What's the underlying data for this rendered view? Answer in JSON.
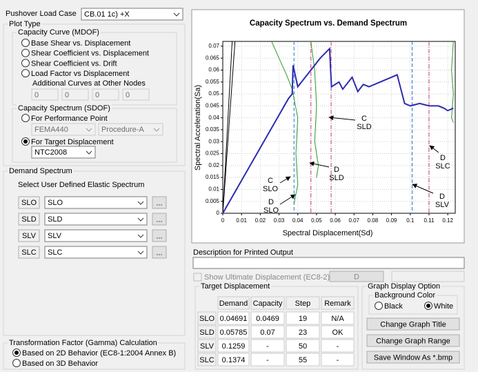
{
  "load_case": {
    "label": "Pushover Load Case",
    "value": "CB.01 1c) +X"
  },
  "plot_type": {
    "title": "Plot Type",
    "capacity_curve": {
      "title": "Capacity Curve (MDOF)",
      "options": [
        "Base Shear vs. Displacement",
        "Shear Coefficient vs. Displacement",
        "Shear Coefficient vs. Drift",
        "Load Factor vs Displacement"
      ],
      "additional_label": "Additional Curves at Other Nodes",
      "nodes": [
        0,
        0,
        0,
        0
      ]
    },
    "capacity_spectrum": {
      "title": "Capacity Spectrum (SDOF)",
      "options": [
        "For Performance Point",
        "For Target Displacement"
      ],
      "selected": 1,
      "method": "FEMA440",
      "procedure": "Procedure-A",
      "code": "NTC2008"
    }
  },
  "demand_spectrum": {
    "title": "Demand Spectrum",
    "subtitle": "Select User Defined Elastic Spectrum",
    "rows": [
      {
        "label": "SLO",
        "value": "SLO",
        "button": "..."
      },
      {
        "label": "SLD",
        "value": "SLD",
        "button": "..."
      },
      {
        "label": "SLV",
        "value": "SLV",
        "button": "..."
      },
      {
        "label": "SLC",
        "value": "SLC",
        "button": "..."
      }
    ]
  },
  "gamma": {
    "title": "Transformation Factor (Gamma) Calculation",
    "options": [
      "Based on 2D Behavior (EC8-1:2004  Annex B)",
      "Based on 3D Behavior"
    ],
    "selected": 0
  },
  "graph": {
    "type": "line",
    "title": "Capacity Spectrum vs. Demand Spectrum",
    "x_label": "Spectral Displacement(Sd)",
    "y_label": "Spectral Acceleration(Sa)",
    "xlim": [
      0,
      0.124
    ],
    "ylim": [
      0,
      0.072
    ],
    "xticks": [
      0,
      0.01,
      0.02,
      0.03,
      0.04,
      0.05,
      0.06,
      0.07,
      0.08,
      0.09,
      0.1,
      0.11,
      0.12
    ],
    "yticks": [
      0,
      0.005,
      0.01,
      0.015,
      0.02,
      0.025,
      0.03,
      0.035,
      0.04,
      0.045,
      0.05,
      0.055,
      0.06,
      0.065,
      0.07
    ],
    "grid": true,
    "series": [
      {
        "color": "#000000",
        "x": [
          0,
          0.005
        ],
        "values": [
          0,
          0.072
        ]
      },
      {
        "color": "#000000",
        "x": [
          0,
          0.0065
        ],
        "values": [
          0,
          0.072
        ]
      },
      {
        "color": "#2e9a2e",
        "x": [
          0.026,
          0.03,
          0.034,
          0.037,
          0.04,
          0.039,
          0.04,
          0.038
        ],
        "values": [
          0.072,
          0.065,
          0.058,
          0.052,
          0.04,
          0.025,
          0.012,
          0.004
        ]
      },
      {
        "color": "#2e9a2e",
        "x": [
          0.047,
          0.049,
          0.05,
          0.049,
          0.051,
          0.05
        ],
        "values": [
          0.072,
          0.06,
          0.045,
          0.03,
          0.02,
          0.015
        ]
      },
      {
        "color": "#2e9a2e",
        "x": [
          0.123,
          0.122,
          0.123,
          0.122,
          0.123
        ],
        "values": [
          0.072,
          0.06,
          0.05,
          0.04,
          0.038
        ]
      },
      {
        "color": "#2b2bb0",
        "x": [
          0,
          0.035,
          0.037,
          0.0375,
          0.04,
          0.046,
          0.052,
          0.057,
          0.0575,
          0.058,
          0.062,
          0.064,
          0.069,
          0.072,
          0.075,
          0.078,
          0.093,
          0.097,
          0.1,
          0.105,
          0.11,
          0.115,
          0.118,
          0.12,
          0.123
        ],
        "values": [
          0,
          0.048,
          0.05,
          0.062,
          0.053,
          0.059,
          0.065,
          0.069,
          0.06,
          0.053,
          0.055,
          0.052,
          0.057,
          0.051,
          0.054,
          0.053,
          0.058,
          0.046,
          0.045,
          0.046,
          0.045,
          0.045,
          0.044,
          0.043,
          0.044
        ]
      }
    ],
    "vlines": [
      {
        "x": 0.038,
        "color": "#2a6fd6",
        "dash": "dashed"
      },
      {
        "x": 0.047,
        "color": "#c0397a",
        "dash": "dashdot"
      },
      {
        "x": 0.0578,
        "color": "#c0397a",
        "dash": "dashdot"
      },
      {
        "x": 0.101,
        "color": "#2a6fd6",
        "dash": "dashed"
      },
      {
        "x": 0.11,
        "color": "#c0397a",
        "dash": "dashdot"
      }
    ],
    "annotations": [
      {
        "lines": [
          "C",
          "SLO"
        ]
      },
      {
        "lines": [
          "D",
          "SLO"
        ]
      },
      {
        "lines": [
          "D",
          "SLD"
        ]
      },
      {
        "lines": [
          "C",
          "SLD"
        ]
      },
      {
        "lines": [
          "D",
          "SLC"
        ]
      },
      {
        "lines": [
          "D",
          "SLV"
        ]
      }
    ]
  },
  "description": {
    "label": "Description for Printed Output"
  },
  "ultimate": {
    "label": "Show Ultimate Displacement  (EC8-2)",
    "button": "D"
  },
  "target": {
    "title": "Target Displacement",
    "columns": [
      "Demand",
      "Capacity",
      "Step",
      "Remark"
    ],
    "rows": [
      [
        "SLO",
        0.04691,
        0.0469,
        19,
        "N/A"
      ],
      [
        "SLD",
        0.05785,
        0.07,
        23,
        "OK"
      ],
      [
        "SLV",
        0.1259,
        "-",
        50,
        "-"
      ],
      [
        "SLC",
        0.1374,
        "-",
        55,
        "-"
      ]
    ]
  },
  "display": {
    "title": "Graph Display Option",
    "background": "Background Color",
    "options": [
      "Black",
      "White"
    ],
    "selected": 1,
    "buttons": [
      "Change Graph Title",
      "Change Graph Range",
      "Save Window As *.bmp"
    ]
  }
}
